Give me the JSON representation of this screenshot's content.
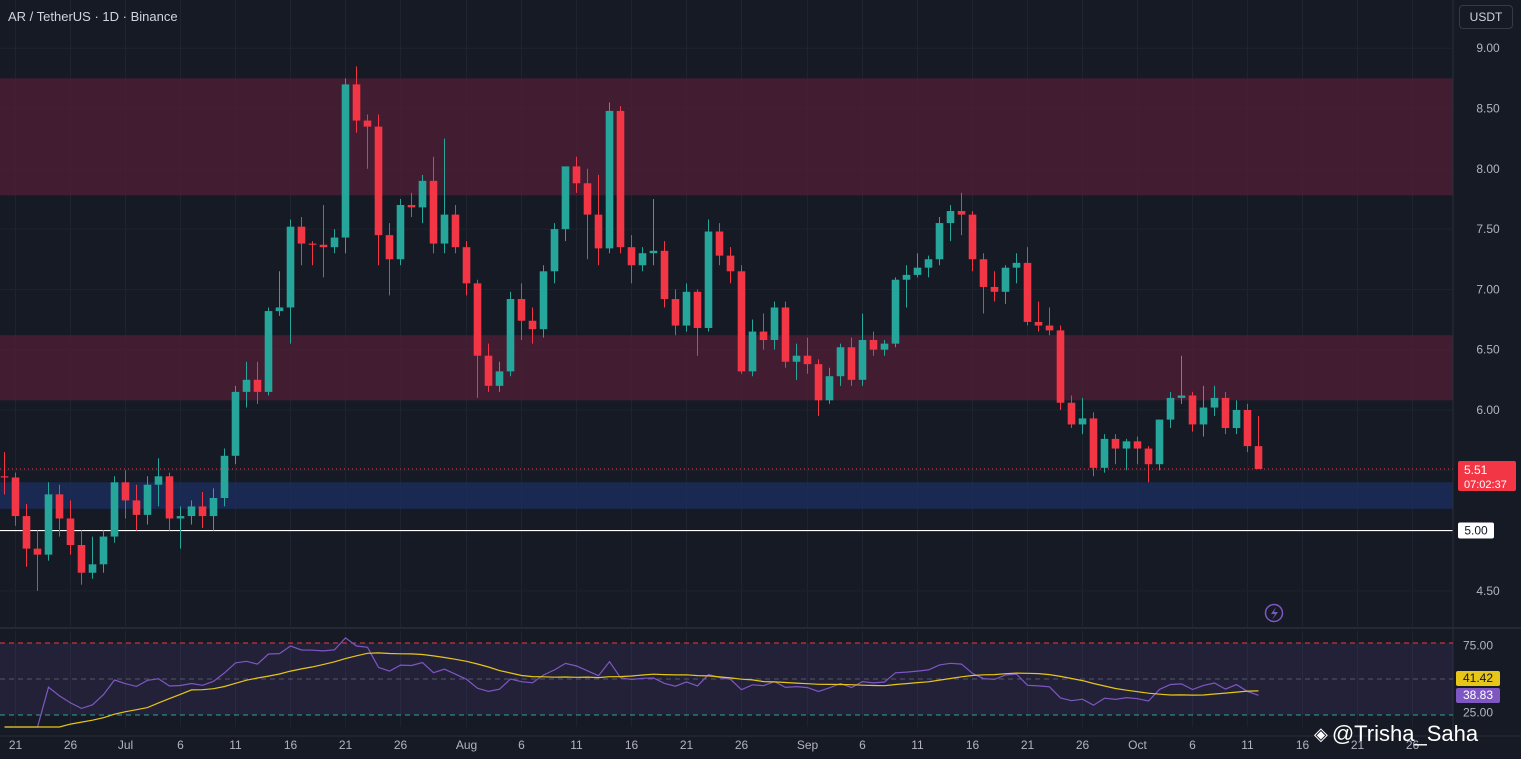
{
  "header": {
    "title": "AR / TetherUS · 1D · Binance"
  },
  "currency_label": "USDT",
  "watermark": {
    "text": "@Trisha_Saha",
    "icon": "binance-diamond-icon"
  },
  "colors": {
    "background": "#161a25",
    "up": "#26a69a",
    "down": "#f23645",
    "resistance_zone": "#4a1f35",
    "support_zone": "#1b2d5a",
    "rsi_line": "#7e57c2",
    "rsi_ma": "#e6c619"
  },
  "chart_data": [
    {
      "type": "candlestick",
      "title": "AR / TetherUS · 1D · Binance",
      "ylim": [
        4.2,
        9.4
      ],
      "y_ticks": [
        "9.00",
        "8.50",
        "8.00",
        "7.50",
        "7.00",
        "6.50",
        "6.00",
        "5.50",
        "5.00",
        "4.50"
      ],
      "x_ticks": [
        "21",
        "26",
        "Jul",
        "6",
        "11",
        "16",
        "21",
        "26",
        "Aug",
        "6",
        "11",
        "16",
        "21",
        "26",
        "Sep",
        "6",
        "11",
        "16",
        "21",
        "26",
        "Oct",
        "6",
        "11",
        "16",
        "21",
        "26"
      ],
      "x_start_date": "2023-06-20",
      "zones": [
        {
          "name": "resistance-upper",
          "from": 7.78,
          "to": 8.75
        },
        {
          "name": "resistance-lower",
          "from": 6.08,
          "to": 6.62
        },
        {
          "name": "support",
          "from": 5.18,
          "to": 5.4
        }
      ],
      "horizontal_line": {
        "value": 5.0,
        "label": "5.00"
      },
      "last_price": {
        "value": 5.51,
        "label": "5.51",
        "countdown": "07:02:37"
      },
      "candles": [
        [
          5.45,
          5.65,
          5.3,
          5.44
        ],
        [
          5.44,
          5.48,
          5.04,
          5.12
        ],
        [
          5.12,
          5.22,
          4.7,
          4.85
        ],
        [
          4.85,
          5.0,
          4.5,
          4.8
        ],
        [
          4.8,
          5.4,
          4.75,
          5.3
        ],
        [
          5.3,
          5.38,
          4.95,
          5.1
        ],
        [
          5.1,
          5.25,
          4.8,
          4.88
        ],
        [
          4.88,
          5.0,
          4.55,
          4.65
        ],
        [
          4.65,
          4.95,
          4.6,
          4.72
        ],
        [
          4.72,
          5.0,
          4.65,
          4.95
        ],
        [
          4.95,
          5.45,
          4.9,
          5.4
        ],
        [
          5.4,
          5.5,
          5.1,
          5.25
        ],
        [
          5.25,
          5.38,
          5.0,
          5.13
        ],
        [
          5.13,
          5.45,
          5.05,
          5.38
        ],
        [
          5.38,
          5.6,
          5.2,
          5.45
        ],
        [
          5.45,
          5.48,
          5.0,
          5.1
        ],
        [
          5.1,
          5.2,
          4.85,
          5.12
        ],
        [
          5.12,
          5.25,
          5.05,
          5.2
        ],
        [
          5.2,
          5.32,
          5.02,
          5.12
        ],
        [
          5.12,
          5.35,
          5.0,
          5.27
        ],
        [
          5.27,
          5.68,
          5.2,
          5.62
        ],
        [
          5.62,
          6.2,
          5.55,
          6.15
        ],
        [
          6.15,
          6.4,
          6.02,
          6.25
        ],
        [
          6.25,
          6.4,
          6.05,
          6.15
        ],
        [
          6.15,
          6.85,
          6.12,
          6.82
        ],
        [
          6.82,
          7.15,
          6.78,
          6.85
        ],
        [
          6.85,
          7.58,
          6.55,
          7.52
        ],
        [
          7.52,
          7.6,
          7.2,
          7.38
        ],
        [
          7.38,
          7.4,
          7.2,
          7.37
        ],
        [
          7.37,
          7.7,
          7.1,
          7.35
        ],
        [
          7.35,
          7.5,
          7.3,
          7.43
        ],
        [
          7.43,
          8.75,
          7.3,
          8.7
        ],
        [
          8.7,
          8.85,
          8.3,
          8.4
        ],
        [
          8.4,
          8.45,
          8.0,
          8.35
        ],
        [
          8.35,
          8.45,
          7.2,
          7.45
        ],
        [
          7.45,
          7.55,
          6.95,
          7.25
        ],
        [
          7.25,
          7.75,
          7.2,
          7.7
        ],
        [
          7.7,
          7.8,
          7.6,
          7.68
        ],
        [
          7.68,
          7.95,
          7.55,
          7.9
        ],
        [
          7.9,
          8.1,
          7.3,
          7.38
        ],
        [
          7.38,
          8.25,
          7.3,
          7.62
        ],
        [
          7.62,
          7.7,
          7.3,
          7.35
        ],
        [
          7.35,
          7.4,
          6.95,
          7.05
        ],
        [
          7.05,
          7.08,
          6.1,
          6.45
        ],
        [
          6.45,
          6.55,
          6.15,
          6.2
        ],
        [
          6.2,
          6.4,
          6.15,
          6.32
        ],
        [
          6.32,
          6.98,
          6.28,
          6.92
        ],
        [
          6.92,
          7.05,
          6.58,
          6.74
        ],
        [
          6.74,
          6.85,
          6.55,
          6.67
        ],
        [
          6.67,
          7.2,
          6.6,
          7.15
        ],
        [
          7.15,
          7.55,
          7.05,
          7.5
        ],
        [
          7.5,
          8.0,
          7.4,
          8.02
        ],
        [
          8.02,
          8.1,
          7.8,
          7.88
        ],
        [
          7.88,
          8.0,
          7.25,
          7.62
        ],
        [
          7.62,
          7.95,
          7.2,
          7.34
        ],
        [
          7.34,
          8.55,
          7.3,
          8.48
        ],
        [
          8.48,
          8.52,
          7.3,
          7.35
        ],
        [
          7.35,
          7.45,
          7.05,
          7.2
        ],
        [
          7.2,
          7.35,
          7.15,
          7.3
        ],
        [
          7.3,
          7.75,
          7.2,
          7.32
        ],
        [
          7.32,
          7.4,
          6.85,
          6.92
        ],
        [
          6.92,
          7.0,
          6.62,
          6.7
        ],
        [
          6.7,
          7.05,
          6.65,
          6.98
        ],
        [
          6.98,
          7.0,
          6.45,
          6.68
        ],
        [
          6.68,
          7.58,
          6.65,
          7.48
        ],
        [
          7.48,
          7.55,
          7.2,
          7.28
        ],
        [
          7.28,
          7.35,
          7.05,
          7.15
        ],
        [
          7.15,
          7.2,
          6.3,
          6.32
        ],
        [
          6.32,
          6.75,
          6.28,
          6.65
        ],
        [
          6.65,
          6.8,
          6.5,
          6.58
        ],
        [
          6.58,
          6.9,
          6.5,
          6.85
        ],
        [
          6.85,
          6.9,
          6.35,
          6.4
        ],
        [
          6.4,
          6.55,
          6.25,
          6.45
        ],
        [
          6.45,
          6.6,
          6.3,
          6.38
        ],
        [
          6.38,
          6.42,
          5.95,
          6.08
        ],
        [
          6.08,
          6.35,
          6.05,
          6.28
        ],
        [
          6.28,
          6.55,
          6.2,
          6.52
        ],
        [
          6.52,
          6.6,
          6.2,
          6.25
        ],
        [
          6.25,
          6.8,
          6.2,
          6.58
        ],
        [
          6.58,
          6.65,
          6.45,
          6.5
        ],
        [
          6.5,
          6.58,
          6.45,
          6.55
        ],
        [
          6.55,
          7.1,
          6.52,
          7.08
        ],
        [
          7.08,
          7.2,
          6.85,
          7.12
        ],
        [
          7.12,
          7.3,
          7.1,
          7.18
        ],
        [
          7.18,
          7.28,
          7.1,
          7.25
        ],
        [
          7.25,
          7.6,
          7.2,
          7.55
        ],
        [
          7.55,
          7.7,
          7.4,
          7.65
        ],
        [
          7.65,
          7.8,
          7.45,
          7.62
        ],
        [
          7.62,
          7.65,
          7.15,
          7.25
        ],
        [
          7.25,
          7.3,
          6.8,
          7.02
        ],
        [
          7.02,
          7.15,
          6.9,
          6.98
        ],
        [
          6.98,
          7.2,
          6.88,
          7.18
        ],
        [
          7.18,
          7.3,
          7.05,
          7.22
        ],
        [
          7.22,
          7.35,
          6.7,
          6.73
        ],
        [
          6.73,
          6.9,
          6.65,
          6.7
        ],
        [
          6.7,
          6.85,
          6.62,
          6.66
        ],
        [
          6.66,
          6.7,
          6.0,
          6.06
        ],
        [
          6.06,
          6.12,
          5.85,
          5.88
        ],
        [
          5.88,
          6.1,
          5.8,
          5.93
        ],
        [
          5.93,
          5.98,
          5.45,
          5.52
        ],
        [
          5.52,
          5.8,
          5.48,
          5.76
        ],
        [
          5.76,
          5.8,
          5.55,
          5.68
        ],
        [
          5.68,
          5.76,
          5.5,
          5.74
        ],
        [
          5.74,
          5.78,
          5.55,
          5.68
        ],
        [
          5.68,
          5.7,
          5.4,
          5.55
        ],
        [
          5.55,
          5.92,
          5.5,
          5.92
        ],
        [
          5.92,
          6.15,
          5.85,
          6.1
        ],
        [
          6.1,
          6.45,
          6.05,
          6.12
        ],
        [
          6.12,
          6.15,
          5.82,
          5.88
        ],
        [
          5.88,
          6.2,
          5.78,
          6.02
        ],
        [
          6.02,
          6.2,
          5.95,
          6.1
        ],
        [
          6.1,
          6.15,
          5.8,
          5.85
        ],
        [
          5.85,
          6.08,
          5.8,
          6.0
        ],
        [
          6.0,
          6.05,
          5.65,
          5.7
        ],
        [
          5.7,
          5.95,
          5.55,
          5.51
        ]
      ]
    },
    {
      "type": "line",
      "name": "RSI",
      "ylim": [
        14,
        86
      ],
      "y_ticks": [
        "75.00",
        "25.00"
      ],
      "levels": [
        77,
        50,
        23
      ],
      "current": {
        "rsi": "38.83",
        "ma": "41.42"
      }
    }
  ]
}
